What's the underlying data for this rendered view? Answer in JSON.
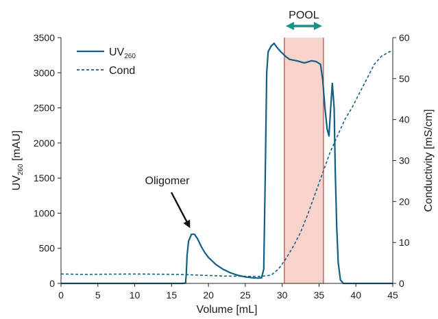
{
  "chart_data": {
    "type": "line",
    "x_axis": {
      "label": "Volume [mL]",
      "range": [
        0,
        45
      ],
      "ticks": [
        0,
        5,
        10,
        15,
        20,
        25,
        30,
        35,
        40,
        45
      ]
    },
    "y_left": {
      "label_main": "UV",
      "label_sub": "260",
      "label_unit": " [mAU]",
      "range": [
        0,
        3500
      ],
      "ticks": [
        0,
        500,
        1000,
        1500,
        2000,
        2500,
        3000,
        3500
      ]
    },
    "y_right": {
      "label": "Conductivity [mS/cm]",
      "range": [
        0,
        60
      ],
      "ticks": [
        0,
        10,
        20,
        30,
        40,
        50,
        60
      ]
    },
    "legend": {
      "placement": "top-left",
      "uv_main": "UV",
      "uv_sub": "260",
      "cond": "Cond"
    },
    "colors": {
      "line": "#0f5f80",
      "pool_fill": "#f8d3cc",
      "pool_edge": "#b9453e",
      "arrow": "#17918a"
    },
    "pool": {
      "label": "POOL",
      "x_start": 30.3,
      "x_end": 35.6
    },
    "annotation": {
      "text": "Oligomer",
      "points_to": [
        17.7,
        700
      ]
    },
    "series": [
      {
        "name": "UV260",
        "axis": "left",
        "style": "solid",
        "points": [
          [
            0,
            0
          ],
          [
            16.5,
            0
          ],
          [
            16.9,
            5
          ],
          [
            17.0,
            150
          ],
          [
            17.1,
            400
          ],
          [
            17.3,
            600
          ],
          [
            17.7,
            700
          ],
          [
            18.1,
            700
          ],
          [
            18.5,
            640
          ],
          [
            19.0,
            530
          ],
          [
            19.5,
            440
          ],
          [
            20.0,
            370
          ],
          [
            21.0,
            270
          ],
          [
            22.0,
            200
          ],
          [
            23.0,
            150
          ],
          [
            24.0,
            115
          ],
          [
            25.0,
            92
          ],
          [
            26.0,
            80
          ],
          [
            26.8,
            75
          ],
          [
            27.2,
            80
          ],
          [
            27.5,
            200
          ],
          [
            27.7,
            1500
          ],
          [
            27.9,
            3000
          ],
          [
            28.1,
            3300
          ],
          [
            28.5,
            3380
          ],
          [
            28.9,
            3420
          ],
          [
            29.3,
            3360
          ],
          [
            29.8,
            3300
          ],
          [
            30.5,
            3230
          ],
          [
            31.0,
            3190
          ],
          [
            32.0,
            3170
          ],
          [
            33.0,
            3140
          ],
          [
            34.0,
            3170
          ],
          [
            34.6,
            3160
          ],
          [
            35.2,
            3120
          ],
          [
            35.5,
            2900
          ],
          [
            35.8,
            2500
          ],
          [
            36.1,
            2200
          ],
          [
            36.35,
            2100
          ],
          [
            36.55,
            2450
          ],
          [
            36.8,
            2850
          ],
          [
            37.05,
            2500
          ],
          [
            37.2,
            1600
          ],
          [
            37.4,
            800
          ],
          [
            37.6,
            300
          ],
          [
            37.9,
            50
          ],
          [
            38.3,
            0
          ],
          [
            45,
            0
          ]
        ]
      },
      {
        "name": "Cond",
        "axis": "right",
        "style": "dashed",
        "points": [
          [
            0,
            2.3
          ],
          [
            3,
            2.2
          ],
          [
            10,
            2.3
          ],
          [
            16,
            2.2
          ],
          [
            22,
            1.8
          ],
          [
            27,
            1.7
          ],
          [
            28.5,
            2.0
          ],
          [
            29.5,
            3.5
          ],
          [
            30.5,
            6.0
          ],
          [
            31.5,
            9.0
          ],
          [
            32.5,
            12.5
          ],
          [
            33.5,
            17.0
          ],
          [
            34.5,
            22.0
          ],
          [
            35.5,
            27.0
          ],
          [
            36.5,
            32.0
          ],
          [
            37.5,
            36.0
          ],
          [
            38.5,
            40.0
          ],
          [
            39.5,
            43.0
          ],
          [
            40.5,
            46.5
          ],
          [
            41.5,
            50.0
          ],
          [
            42.5,
            53.5
          ],
          [
            43.5,
            55.5
          ],
          [
            44.5,
            56.5
          ],
          [
            45,
            56.8
          ]
        ]
      }
    ]
  }
}
